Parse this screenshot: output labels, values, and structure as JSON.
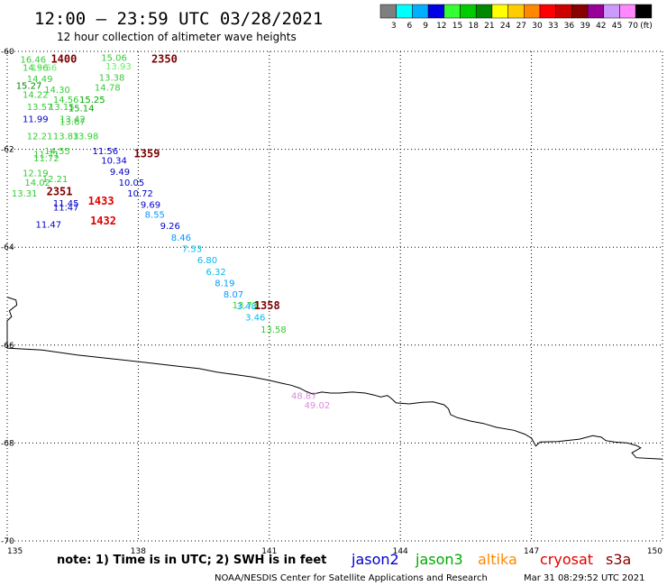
{
  "header": {
    "title": "12:00 – 23:59 UTC 03/28/2021",
    "subtitle": "12 hour collection of altimeter wave heights"
  },
  "legend": {
    "unit": "(ft)",
    "bins": [
      {
        "label": "3",
        "color": "#7f7f7f"
      },
      {
        "label": "6",
        "color": "#00ffff"
      },
      {
        "label": "9",
        "color": "#00b0ff"
      },
      {
        "label": "12",
        "color": "#0000e6"
      },
      {
        "label": "15",
        "color": "#33ff33"
      },
      {
        "label": "18",
        "color": "#00cc00"
      },
      {
        "label": "21",
        "color": "#008800"
      },
      {
        "label": "24",
        "color": "#ffff00"
      },
      {
        "label": "27",
        "color": "#ffcc00"
      },
      {
        "label": "30",
        "color": "#ff8800"
      },
      {
        "label": "33",
        "color": "#ff0000"
      },
      {
        "label": "36",
        "color": "#cc0000"
      },
      {
        "label": "39",
        "color": "#880000"
      },
      {
        "label": "42",
        "color": "#990099"
      },
      {
        "label": "45",
        "color": "#cc99ff"
      },
      {
        "label": "70",
        "color": "#ff88ff"
      },
      {
        "label": "",
        "color": "#000000"
      }
    ]
  },
  "map": {
    "lon_range": [
      135,
      150
    ],
    "lat_range": [
      -70,
      -60
    ],
    "x_ticks": [
      {
        "value": 135,
        "label": "135"
      },
      {
        "value": 138,
        "label": "138"
      },
      {
        "value": 141,
        "label": "141"
      },
      {
        "value": 144,
        "label": "144"
      },
      {
        "value": 147,
        "label": "147"
      },
      {
        "value": 150,
        "label": "150"
      }
    ],
    "y_ticks": [
      {
        "value": -60,
        "label": "-60"
      },
      {
        "value": -62,
        "label": "-62"
      },
      {
        "value": -64,
        "label": "-64"
      },
      {
        "value": -66,
        "label": "-66"
      },
      {
        "value": -68,
        "label": "-68"
      },
      {
        "value": -70,
        "label": "-70"
      }
    ],
    "coastline_lonlat": [
      [
        135.0,
        -65.02
      ],
      [
        135.2,
        -65.08
      ],
      [
        135.22,
        -65.18
      ],
      [
        135.05,
        -65.3
      ],
      [
        135.1,
        -65.42
      ],
      [
        135.0,
        -65.5
      ],
      [
        135.0,
        -66.06
      ],
      [
        135.8,
        -66.1
      ],
      [
        136.6,
        -66.2
      ],
      [
        137.4,
        -66.28
      ],
      [
        138.2,
        -66.36
      ],
      [
        138.8,
        -66.42
      ],
      [
        139.4,
        -66.48
      ],
      [
        139.8,
        -66.55
      ],
      [
        140.2,
        -66.6
      ],
      [
        140.6,
        -66.65
      ],
      [
        141.0,
        -66.72
      ],
      [
        141.3,
        -66.78
      ],
      [
        141.5,
        -66.82
      ],
      [
        141.7,
        -66.88
      ],
      [
        141.85,
        -66.95
      ],
      [
        142.0,
        -67.0
      ],
      [
        142.2,
        -66.96
      ],
      [
        142.4,
        -66.98
      ],
      [
        142.6,
        -66.98
      ],
      [
        142.9,
        -66.96
      ],
      [
        143.2,
        -66.98
      ],
      [
        143.4,
        -67.02
      ],
      [
        143.55,
        -67.06
      ],
      [
        143.7,
        -67.03
      ],
      [
        143.78,
        -67.08
      ],
      [
        143.9,
        -67.18
      ],
      [
        144.2,
        -67.2
      ],
      [
        144.5,
        -67.17
      ],
      [
        144.75,
        -67.16
      ],
      [
        145.0,
        -67.22
      ],
      [
        145.1,
        -67.3
      ],
      [
        145.15,
        -67.42
      ],
      [
        145.3,
        -67.48
      ],
      [
        145.6,
        -67.55
      ],
      [
        145.9,
        -67.6
      ],
      [
        146.2,
        -67.68
      ],
      [
        146.6,
        -67.74
      ],
      [
        146.85,
        -67.82
      ],
      [
        147.0,
        -67.9
      ],
      [
        147.1,
        -68.06
      ],
      [
        147.2,
        -67.98
      ],
      [
        147.6,
        -67.97
      ],
      [
        148.1,
        -67.92
      ],
      [
        148.4,
        -67.85
      ],
      [
        148.6,
        -67.88
      ],
      [
        148.7,
        -67.95
      ],
      [
        148.9,
        -67.98
      ],
      [
        149.2,
        -68.0
      ],
      [
        149.4,
        -68.05
      ],
      [
        149.5,
        -68.1
      ],
      [
        149.3,
        -68.2
      ],
      [
        149.4,
        -68.3
      ],
      [
        149.8,
        -68.32
      ],
      [
        150.0,
        -68.33
      ]
    ]
  },
  "passes": [
    {
      "label": "1400",
      "lon": 136.0,
      "lat": -60.05,
      "color": "#7a0000"
    },
    {
      "label": "2350",
      "lon": 138.3,
      "lat": -60.05,
      "color": "#7a0000"
    },
    {
      "label": "1359",
      "lon": 137.9,
      "lat": -61.98,
      "color": "#7a0000"
    },
    {
      "label": "2351",
      "lon": 135.9,
      "lat": -62.75,
      "color": "#7a0000"
    },
    {
      "label": "1433",
      "lon": 136.85,
      "lat": -62.95,
      "color": "#e00000"
    },
    {
      "label": "1432",
      "lon": 136.9,
      "lat": -63.35,
      "color": "#e00000"
    },
    {
      "label": "1358",
      "lon": 140.65,
      "lat": -65.08,
      "color": "#7a0000"
    }
  ],
  "observations": [
    {
      "text": "16.46",
      "lon": 135.3,
      "lat": -60.08,
      "color": "#33cc33"
    },
    {
      "text": "14.96",
      "lon": 135.35,
      "lat": -60.25,
      "color": "#33cc33"
    },
    {
      "text": "15.56",
      "lon": 135.55,
      "lat": -60.25,
      "color": "#66ee66"
    },
    {
      "text": "14.49",
      "lon": 135.45,
      "lat": -60.48,
      "color": "#33cc33"
    },
    {
      "text": "15.27",
      "lon": 135.2,
      "lat": -60.62,
      "color": "#008800"
    },
    {
      "text": "14.30",
      "lon": 135.85,
      "lat": -60.7,
      "color": "#33cc33"
    },
    {
      "text": "14.22",
      "lon": 135.35,
      "lat": -60.8,
      "color": "#33cc33"
    },
    {
      "text": "14.56",
      "lon": 136.05,
      "lat": -60.9,
      "color": "#33cc33"
    },
    {
      "text": "15.25",
      "lon": 136.65,
      "lat": -60.9,
      "color": "#00aa00"
    },
    {
      "text": "13.57",
      "lon": 135.45,
      "lat": -61.05,
      "color": "#33cc33"
    },
    {
      "text": "13.15",
      "lon": 135.95,
      "lat": -61.05,
      "color": "#33cc33"
    },
    {
      "text": "15.14",
      "lon": 136.4,
      "lat": -61.08,
      "color": "#00aa00"
    },
    {
      "text": "11.99",
      "lon": 135.35,
      "lat": -61.3,
      "color": "#0000cc"
    },
    {
      "text": "13.42",
      "lon": 136.2,
      "lat": -61.3,
      "color": "#33cc33"
    },
    {
      "text": "13.67",
      "lon": 136.2,
      "lat": -61.35,
      "color": "#33cc33"
    },
    {
      "text": "12.21",
      "lon": 135.45,
      "lat": -61.65,
      "color": "#33cc33"
    },
    {
      "text": "13.83",
      "lon": 136.05,
      "lat": -61.65,
      "color": "#33cc33"
    },
    {
      "text": "13.98",
      "lon": 136.5,
      "lat": -61.65,
      "color": "#33cc33"
    },
    {
      "text": "14.55",
      "lon": 135.85,
      "lat": -61.95,
      "color": "#33cc33"
    },
    {
      "text": "11.56",
      "lon": 136.95,
      "lat": -61.95,
      "color": "#0000cc"
    },
    {
      "text": "11.71",
      "lon": 135.6,
      "lat": -62.02,
      "color": "#33cc33"
    },
    {
      "text": "11.72",
      "lon": 135.6,
      "lat": -62.1,
      "color": "#33cc33"
    },
    {
      "text": "10.34",
      "lon": 137.15,
      "lat": -62.15,
      "color": "#0000cc"
    },
    {
      "text": "12.19",
      "lon": 135.35,
      "lat": -62.4,
      "color": "#33cc33"
    },
    {
      "text": "9.49",
      "lon": 137.35,
      "lat": -62.38,
      "color": "#0000cc"
    },
    {
      "text": "14.02",
      "lon": 135.4,
      "lat": -62.6,
      "color": "#33cc33"
    },
    {
      "text": "12.21",
      "lon": 135.8,
      "lat": -62.52,
      "color": "#33cc33"
    },
    {
      "text": "10.05",
      "lon": 137.55,
      "lat": -62.6,
      "color": "#0000cc"
    },
    {
      "text": "13.31",
      "lon": 135.1,
      "lat": -62.82,
      "color": "#33cc33"
    },
    {
      "text": "10.72",
      "lon": 137.75,
      "lat": -62.82,
      "color": "#0000cc"
    },
    {
      "text": "11.45",
      "lon": 136.05,
      "lat": -63.02,
      "color": "#0000cc"
    },
    {
      "text": "11.47",
      "lon": 136.05,
      "lat": -63.1,
      "color": "#0000cc"
    },
    {
      "text": "9.69",
      "lon": 138.05,
      "lat": -63.05,
      "color": "#0000cc"
    },
    {
      "text": "8.55",
      "lon": 138.15,
      "lat": -63.25,
      "color": "#0099ff"
    },
    {
      "text": "11.47",
      "lon": 135.65,
      "lat": -63.45,
      "color": "#0000cc"
    },
    {
      "text": "9.26",
      "lon": 138.5,
      "lat": -63.48,
      "color": "#0000cc"
    },
    {
      "text": "8.46",
      "lon": 138.75,
      "lat": -63.72,
      "color": "#0099ff"
    },
    {
      "text": "7.53",
      "lon": 139.0,
      "lat": -63.95,
      "color": "#00bbee"
    },
    {
      "text": "6.80",
      "lon": 139.35,
      "lat": -64.18,
      "color": "#00bbee"
    },
    {
      "text": "6.32",
      "lon": 139.55,
      "lat": -64.42,
      "color": "#00bbee"
    },
    {
      "text": "8.19",
      "lon": 139.75,
      "lat": -64.65,
      "color": "#0099ff"
    },
    {
      "text": "8.07",
      "lon": 139.95,
      "lat": -64.88,
      "color": "#0099ff"
    },
    {
      "text": "13.73",
      "lon": 140.15,
      "lat": -65.1,
      "color": "#33cc33"
    },
    {
      "text": "3.48",
      "lon": 140.25,
      "lat": -65.12,
      "color": "#00bbee"
    },
    {
      "text": "3.46",
      "lon": 140.45,
      "lat": -65.35,
      "color": "#00bbee"
    },
    {
      "text": "13.58",
      "lon": 140.8,
      "lat": -65.6,
      "color": "#33cc33"
    },
    {
      "text": "15.06",
      "lon": 137.15,
      "lat": -60.05,
      "color": "#33cc33"
    },
    {
      "text": "13.93",
      "lon": 137.25,
      "lat": -60.22,
      "color": "#66ee66"
    },
    {
      "text": "13.38",
      "lon": 137.1,
      "lat": -60.45,
      "color": "#33cc33"
    },
    {
      "text": "14.78",
      "lon": 137.0,
      "lat": -60.65,
      "color": "#33cc33"
    },
    {
      "text": "48.87",
      "lon": 141.5,
      "lat": -66.95,
      "color": "#dd88dd"
    },
    {
      "text": "49.02",
      "lon": 141.8,
      "lat": -67.15,
      "color": "#dd88dd"
    }
  ],
  "footer": {
    "note": "note:  1) Time is in UTC;  2) SWH is in feet",
    "credit": "NOAA/NESDIS Center for Satellite Applications and Research",
    "timestamp": "Mar 31 08:29:52 UTC 2021"
  },
  "satellites": [
    {
      "name": "jason2",
      "color": "#0000cc"
    },
    {
      "name": "jason3",
      "color": "#00aa00"
    },
    {
      "name": "altika",
      "color": "#ff8800"
    },
    {
      "name": "cryosat",
      "color": "#e00000"
    },
    {
      "name": "s3a",
      "color": "#880000"
    }
  ]
}
